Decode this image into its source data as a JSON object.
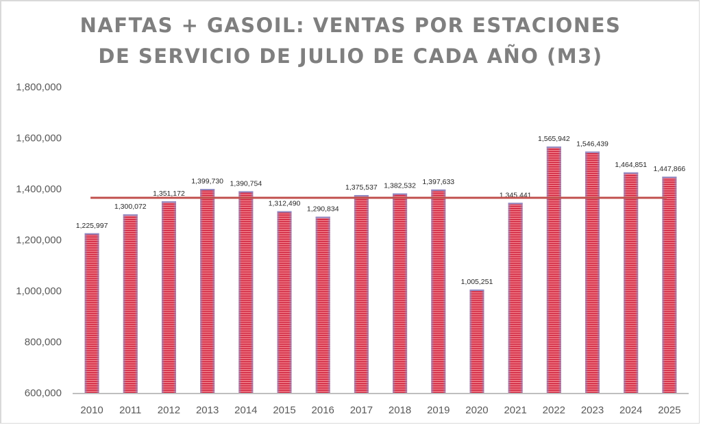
{
  "chart_data": {
    "type": "bar",
    "title_lines": [
      "NAFTAS + GASOIL: VENTAS POR ESTACIONES",
      "DE SERVICIO DE JULIO DE CADA AÑO (M3)"
    ],
    "xlabel": "",
    "ylabel": "",
    "categories": [
      "2010",
      "2011",
      "2012",
      "2013",
      "2014",
      "2015",
      "2016",
      "2017",
      "2018",
      "2019",
      "2020",
      "2021",
      "2022",
      "2023",
      "2024",
      "2025"
    ],
    "values": [
      1225997,
      1300072,
      1351172,
      1399730,
      1390754,
      1312490,
      1290834,
      1375537,
      1382532,
      1397633,
      1005251,
      1345441,
      1565942,
      1546439,
      1464851,
      1447866
    ],
    "data_labels": [
      "1,225,997",
      "1,300,072",
      "1,351,172",
      "1,399,730",
      "1,390,754",
      "1,312,490",
      "1,290,834",
      "1,375,537",
      "1,382,532",
      "1,397,633",
      "1,005,251",
      "1,345,441",
      "1,565,942",
      "1,546,439",
      "1,464,851",
      "1,447,866"
    ],
    "ylim": [
      600000,
      1800000
    ],
    "yticks": [
      600000,
      800000,
      1000000,
      1200000,
      1400000,
      1600000,
      1800000
    ],
    "ytick_labels": [
      "600,000",
      "800,000",
      "1,000,000",
      "1,200,000",
      "1,400,000",
      "1,600,000",
      "1,800,000"
    ],
    "grid": false,
    "legend": "none",
    "reference_line": {
      "value": 1365000,
      "label": "",
      "color": "#c0504d"
    },
    "colors": {
      "bar_fill": "#e8626f",
      "bar_stripe": "#c0001e",
      "bar_edge": "#8e8fc8",
      "axis": "#bfbfbf",
      "title": "#7f7f7f"
    }
  }
}
